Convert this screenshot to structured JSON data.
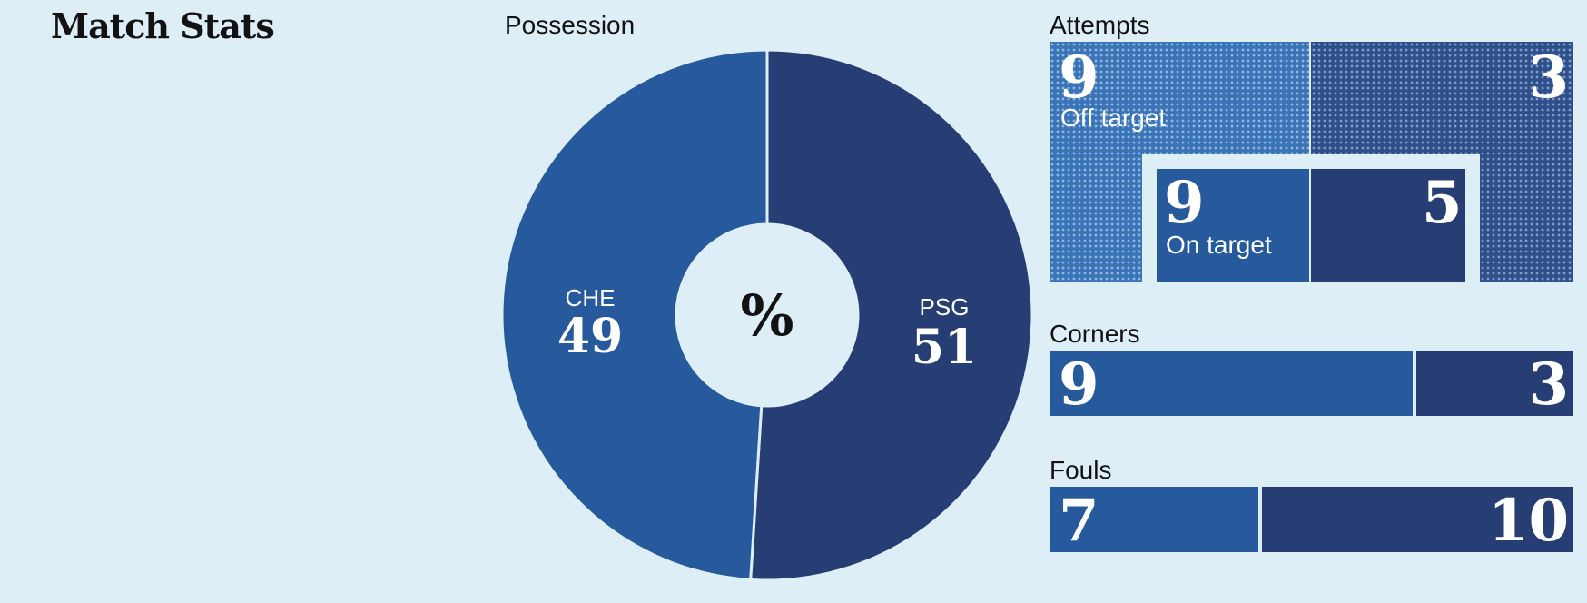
{
  "title": "Match Stats",
  "colors": {
    "background": "#ddeef7",
    "che": "#275a9d",
    "psg": "#263e74",
    "center": "#ddeef7"
  },
  "chart_data": [
    {
      "type": "pie",
      "title": "Possession",
      "center_label": "%",
      "series": [
        {
          "name": "CHE",
          "value": 49
        },
        {
          "name": "PSG",
          "value": 51
        }
      ]
    },
    {
      "type": "bar",
      "title": "Attempts",
      "off_target": {
        "label": "Off target",
        "che": 9,
        "psg": 3
      },
      "on_target": {
        "label": "On target",
        "che": 9,
        "psg": 5
      }
    },
    {
      "type": "bar",
      "title": "Corners",
      "che": 9,
      "psg": 3
    },
    {
      "type": "bar",
      "title": "Fouls",
      "che": 7,
      "psg": 10
    }
  ],
  "labels": {
    "che_value": "49",
    "psg_value": "51",
    "che_team": "CHE",
    "psg_team": "PSG",
    "attempts_off_che": "9",
    "attempts_off_psg": "3",
    "attempts_on_che": "9",
    "attempts_on_psg": "5",
    "corners_che": "9",
    "corners_psg": "3",
    "fouls_che": "7",
    "fouls_psg": "10"
  }
}
